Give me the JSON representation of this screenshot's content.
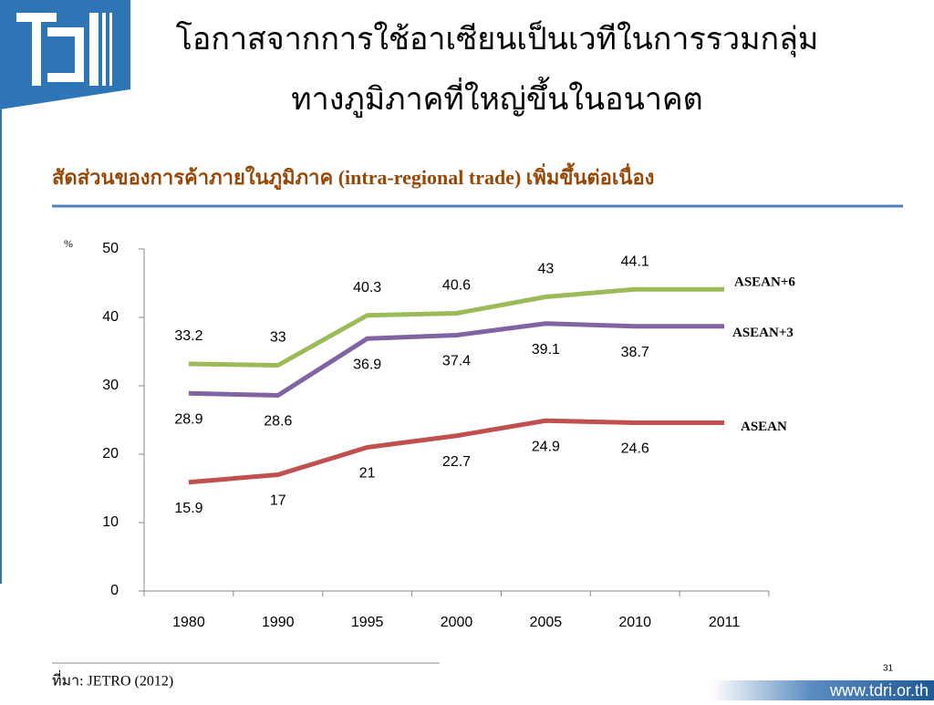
{
  "header": {
    "title_lines": [
      "โอกาสจากการใช้อาเซียนเป็นเวทีในการรวมกลุ่ม",
      "ทางภูมิภาคที่ใหญ่ขึ้นในอนาคต"
    ],
    "subtitle": "สัดส่วนของการค้าภายในภูมิภาค (intra-regional trade) เพิ่มขึ้นต่อเนื่อง"
  },
  "chart_data": {
    "type": "line",
    "y_unit_label": "%",
    "categories": [
      "1980",
      "1990",
      "1995",
      "2000",
      "2005",
      "2010",
      "2011"
    ],
    "series": [
      {
        "name": "ASEAN+6",
        "color": "#9bbb59",
        "values": [
          33.2,
          33,
          40.3,
          40.6,
          43,
          44.1,
          44.1
        ]
      },
      {
        "name": "ASEAN+3",
        "color": "#8064a2",
        "values": [
          28.9,
          28.6,
          36.9,
          37.4,
          39.1,
          38.7,
          38.7
        ]
      },
      {
        "name": "ASEAN",
        "color": "#c0504d",
        "values": [
          15.9,
          17,
          21,
          22.7,
          24.9,
          24.6,
          24.6
        ]
      }
    ],
    "ylim": [
      0,
      50
    ],
    "yticks": [
      0,
      10,
      20,
      30,
      40,
      50
    ],
    "grid": false
  },
  "footer": {
    "source": "ที่มา: JETRO (2012)",
    "page_number": "31",
    "url": "www.tdri.or.th"
  }
}
